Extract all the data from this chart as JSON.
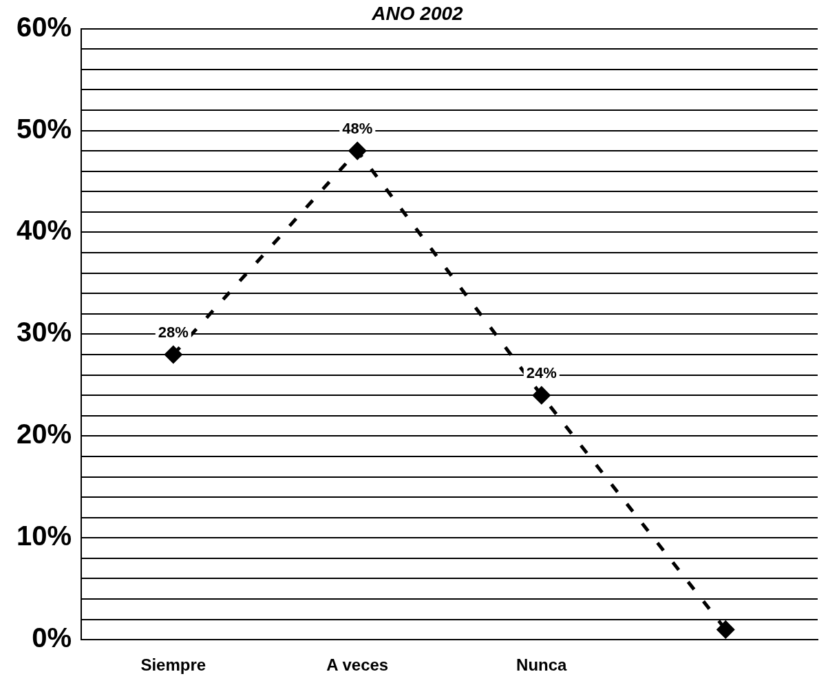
{
  "chart_data": {
    "type": "line",
    "title": "ANO 2002",
    "categories": [
      "Siempre",
      "A veces",
      "Nunca",
      null
    ],
    "series": [
      {
        "color": "#000000",
        "values": [
          28,
          48,
          24,
          1
        ],
        "value_labels": [
          "28%",
          "48%",
          "24%",
          null
        ]
      }
    ],
    "ylim": [
      0,
      60
    ],
    "yticks": [
      {
        "value": 0,
        "label": "0%"
      },
      {
        "value": 2,
        "label": null
      },
      {
        "value": 4,
        "label": null
      },
      {
        "value": 6,
        "label": null
      },
      {
        "value": 8,
        "label": null
      },
      {
        "value": 10,
        "label": "10%"
      },
      {
        "value": 12,
        "label": null
      },
      {
        "value": 14,
        "label": null
      },
      {
        "value": 16,
        "label": null
      },
      {
        "value": 18,
        "label": null
      },
      {
        "value": 20,
        "label": "20%"
      },
      {
        "value": 22,
        "label": null
      },
      {
        "value": 24,
        "label": null
      },
      {
        "value": 26,
        "label": null
      },
      {
        "value": 28,
        "label": null
      },
      {
        "value": 30,
        "label": "30%"
      },
      {
        "value": 32,
        "label": null
      },
      {
        "value": 34,
        "label": null
      },
      {
        "value": 36,
        "label": null
      },
      {
        "value": 38,
        "label": null
      },
      {
        "value": 40,
        "label": "40%"
      },
      {
        "value": 42,
        "label": null
      },
      {
        "value": 44,
        "label": null
      },
      {
        "value": 46,
        "label": null
      },
      {
        "value": 48,
        "label": null
      },
      {
        "value": 50,
        "label": "50%"
      },
      {
        "value": 52,
        "label": null
      },
      {
        "value": 54,
        "label": null
      },
      {
        "value": 56,
        "label": null
      },
      {
        "value": 58,
        "label": null
      },
      {
        "value": 60,
        "label": "60%"
      }
    ],
    "grid": "y",
    "legend": false,
    "marker": "diamond",
    "line_style": "dashed"
  }
}
